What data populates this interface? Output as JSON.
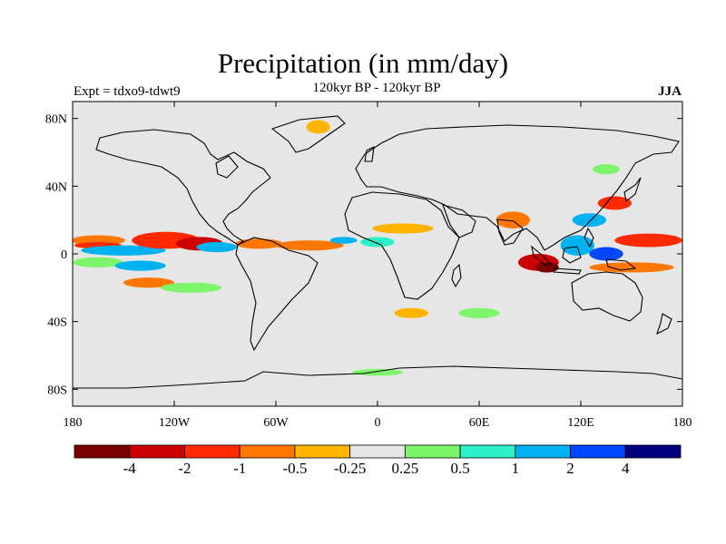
{
  "title": "Precipitation (in mm/day)",
  "subtitle": "120kyr BP - 120kyr BP",
  "left_label": "Expt = tdxo9-tdwt9",
  "right_label": "JJA",
  "chart_data": {
    "type": "heatmap",
    "projection": "cylindrical-equidistant",
    "lon_range": [
      -180,
      180
    ],
    "lat_range": [
      -90,
      90
    ],
    "lat_ticks": [
      {
        "value": 80,
        "label": "80N"
      },
      {
        "value": 40,
        "label": "40N"
      },
      {
        "value": 0,
        "label": "0"
      },
      {
        "value": -40,
        "label": "40S"
      },
      {
        "value": -80,
        "label": "80S"
      }
    ],
    "lon_ticks": [
      {
        "value": -180,
        "label": "180"
      },
      {
        "value": -120,
        "label": "120W"
      },
      {
        "value": -60,
        "label": "60W"
      },
      {
        "value": 0,
        "label": "0"
      },
      {
        "value": 60,
        "label": "60E"
      },
      {
        "value": 120,
        "label": "120E"
      },
      {
        "value": 180,
        "label": "180"
      }
    ],
    "colorbar": {
      "colors": [
        "#7b0000",
        "#cc0000",
        "#ff2a00",
        "#ff7700",
        "#ffb400",
        "#e6e6e6",
        "#7df56a",
        "#2ef0c8",
        "#00b2f0",
        "#0047ff",
        "#000080"
      ],
      "boundary_labels": [
        "-4",
        "-2",
        "-1",
        "-0.5",
        "-0.25",
        "0.25",
        "0.5",
        "1",
        "2",
        "4"
      ]
    },
    "background_color": "#e6e6e6",
    "anomaly_patches": [
      {
        "lon": -165,
        "lat": 8,
        "rlon": 16,
        "rlat": 3,
        "level": 3
      },
      {
        "lon": -165,
        "lat": 5,
        "rlon": 14,
        "rlat": 2,
        "level": 2
      },
      {
        "lon": -150,
        "lat": 2,
        "rlon": 25,
        "rlat": 3,
        "level": 8
      },
      {
        "lon": -125,
        "lat": 8,
        "rlon": 20,
        "rlat": 5,
        "level": 2
      },
      {
        "lon": -105,
        "lat": 6,
        "rlon": 14,
        "rlat": 4,
        "level": 1
      },
      {
        "lon": -95,
        "lat": 4,
        "rlon": 12,
        "rlat": 3,
        "level": 8
      },
      {
        "lon": -70,
        "lat": 6,
        "rlon": 14,
        "rlat": 3,
        "level": 3
      },
      {
        "lon": -40,
        "lat": 5,
        "rlon": 20,
        "rlat": 3,
        "level": 3
      },
      {
        "lon": -20,
        "lat": 8,
        "rlon": 8,
        "rlat": 2,
        "level": 8
      },
      {
        "lon": 15,
        "lat": 15,
        "rlon": 18,
        "rlat": 3,
        "level": 4
      },
      {
        "lon": 0,
        "lat": 7,
        "rlon": 10,
        "rlat": 3,
        "level": 7
      },
      {
        "lon": -165,
        "lat": -5,
        "rlon": 15,
        "rlat": 3,
        "level": 6
      },
      {
        "lon": -140,
        "lat": -7,
        "rlon": 15,
        "rlat": 3,
        "level": 8
      },
      {
        "lon": -135,
        "lat": -17,
        "rlon": 15,
        "rlat": 3,
        "level": 3
      },
      {
        "lon": -110,
        "lat": -20,
        "rlon": 18,
        "rlat": 3,
        "level": 6
      },
      {
        "lon": 80,
        "lat": 20,
        "rlon": 10,
        "rlat": 5,
        "level": 3
      },
      {
        "lon": 95,
        "lat": -5,
        "rlon": 12,
        "rlat": 5,
        "level": 1
      },
      {
        "lon": 100,
        "lat": -8,
        "rlon": 7,
        "rlat": 3,
        "level": 0
      },
      {
        "lon": 118,
        "lat": 5,
        "rlon": 10,
        "rlat": 6,
        "level": 8
      },
      {
        "lon": 135,
        "lat": 0,
        "rlon": 10,
        "rlat": 4,
        "level": 9
      },
      {
        "lon": 160,
        "lat": 8,
        "rlon": 20,
        "rlat": 4,
        "level": 2
      },
      {
        "lon": 150,
        "lat": -8,
        "rlon": 25,
        "rlat": 3,
        "level": 3
      },
      {
        "lon": 125,
        "lat": 20,
        "rlon": 10,
        "rlat": 4,
        "level": 8
      },
      {
        "lon": 140,
        "lat": 30,
        "rlon": 10,
        "rlat": 4,
        "level": 2
      },
      {
        "lon": 135,
        "lat": 50,
        "rlon": 8,
        "rlat": 3,
        "level": 6
      },
      {
        "lon": -35,
        "lat": 75,
        "rlon": 7,
        "rlat": 4,
        "level": 4
      },
      {
        "lon": 20,
        "lat": -35,
        "rlon": 10,
        "rlat": 3,
        "level": 4
      },
      {
        "lon": 60,
        "lat": -35,
        "rlon": 12,
        "rlat": 3,
        "level": 6
      },
      {
        "lon": 0,
        "lat": -70,
        "rlon": 15,
        "rlat": 2,
        "level": 6
      }
    ]
  }
}
